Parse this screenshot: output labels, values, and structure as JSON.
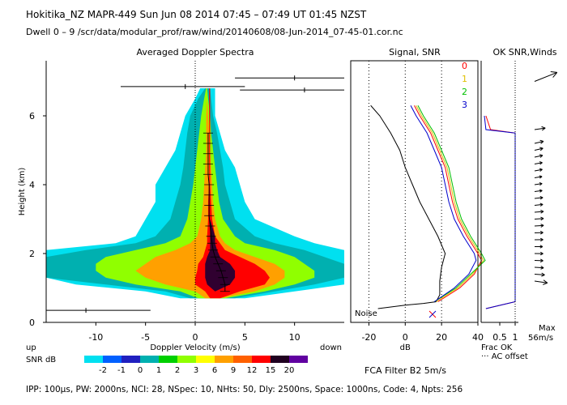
{
  "header": {
    "title": "Hokitika_NZ   MAPR-449   Sun Jun 08 2014 07:45 – 07:49 UT 01:45 NZST",
    "dwell": "Dwell   0 – 9    /scr/data/modular_prof/raw/wind/20140608/08-Jun-2014_07-45-01.cor.nc"
  },
  "footer": {
    "params": "IPP: 100µs,  PW: 2000ns,  NCI: 28,  NSpec: 10,  NHts: 50,  Dly: 2500ns,  Space: 1000ns,  Code: 4,  Npts: 256",
    "filter": "FCA Filter B2   5m/s"
  },
  "chart_data": [
    {
      "type": "heatmap",
      "title": "Averaged Doppler Spectra",
      "xlabel": "Doppler Velocity (m/s)",
      "ylabel": "Height (km)",
      "xlim": [
        -15,
        15
      ],
      "ylim": [
        0,
        7.6
      ],
      "x_ticks": [
        -10,
        -5,
        0,
        5,
        10
      ],
      "y_ticks": [
        0,
        2,
        4,
        6
      ],
      "up_label": "up",
      "down_label": "down",
      "colorbar": {
        "label": "SNR dB",
        "ticks": [
          "-2",
          "-1",
          "0",
          "1",
          "2",
          "3",
          "6",
          "9",
          "12",
          "15",
          "20"
        ],
        "colors": [
          "#00e0f0",
          "#0060ff",
          "#2020c0",
          "#00b0b0",
          "#00d000",
          "#90ff00",
          "#ffff00",
          "#ffa000",
          "#ff6000",
          "#ff0000",
          "#200020",
          "#6000a0"
        ]
      },
      "envelope": {
        "heights": [
          0.7,
          0.9,
          1.1,
          1.3,
          1.5,
          1.7,
          1.9,
          2.1,
          2.3,
          2.5,
          3.0,
          3.5,
          4.0,
          4.5,
          5.0,
          5.5,
          6.0,
          6.5,
          6.8
        ],
        "levels": [
          {
            "snr": "-2",
            "left": [
              -1.5,
              -5,
              -12,
              -15,
              -15,
              -15,
              -15,
              -15,
              -8,
              -6,
              -5,
              -4,
              -4,
              -3,
              -2,
              -1.5,
              -1,
              0,
              0.5
            ],
            "right": [
              5,
              10,
              15,
              15,
              15,
              15,
              15,
              15,
              12,
              10,
              6,
              5,
              4.5,
              4,
              3,
              2.5,
              2,
              2,
              2
            ]
          },
          {
            "snr": "0",
            "left": [
              -0.5,
              -3,
              -9,
              -15,
              -15,
              -15,
              -15,
              -11,
              -6,
              -4,
              -2.5,
              -2,
              -1.5,
              -1.2,
              -1,
              -0.8,
              -0.5,
              0.3,
              1
            ],
            "right": [
              4,
              8,
              12,
              15,
              15,
              15,
              13,
              11,
              8,
              6,
              4,
              3.5,
              3,
              2.8,
              2.5,
              2.2,
              1.8,
              1.6,
              1.5
            ]
          },
          {
            "snr": "2",
            "left": [
              0.3,
              -1.5,
              -6,
              -9,
              -10,
              -10,
              -9,
              -6,
              -3,
              -1.5,
              -0.8,
              -0.5,
              -0.2,
              0,
              0.2,
              0.4,
              0.6,
              0.9,
              1.1
            ],
            "right": [
              3,
              7,
              10,
              12,
              12,
              11,
              10,
              8,
              5,
              4,
              2.8,
              2.4,
              2.2,
              2,
              1.8,
              1.6,
              1.5,
              1.3,
              1.2
            ]
          },
          {
            "snr": "6",
            "left": [
              1,
              0,
              -3,
              -5,
              -6,
              -5,
              -4,
              -2,
              -0.5,
              0.2,
              0.6,
              0.8,
              0.9,
              1,
              1.1,
              1.1,
              1.1,
              1.2,
              1.2
            ],
            "right": [
              2.5,
              6,
              8,
              9,
              9,
              8,
              6,
              4,
              3,
              2.5,
              2,
              1.8,
              1.7,
              1.6,
              1.5,
              1.4,
              1.3,
              1.2,
              1.2
            ]
          },
          {
            "snr": "12",
            "left": [
              1.5,
              1,
              0,
              0,
              0.2,
              0.3,
              0.8,
              1,
              1.2,
              1.2,
              1.3,
              1.3,
              1.4,
              1.4,
              1.4,
              1.4,
              1.4,
              1.4,
              1.4
            ],
            "right": [
              2.5,
              4.5,
              7,
              7.5,
              7,
              6,
              4.5,
              3,
              2.5,
              2,
              1.7,
              1.6,
              1.5,
              1.5,
              1.5,
              1.5,
              1.5,
              1.5,
              1.5
            ]
          },
          {
            "snr": "15",
            "left": [
              2,
              2,
              1.2,
              1,
              1,
              1,
              1.2,
              1.5,
              1.5,
              1.5,
              1.5,
              1.5,
              1.5,
              1.5,
              1.5,
              1.5,
              1.5,
              1.5,
              1.5
            ],
            "right": [
              2,
              2,
              3.5,
              4,
              4,
              3.5,
              2.5,
              2.2,
              2,
              2,
              1.5,
              1.5,
              1.5,
              1.5,
              1.5,
              1.5,
              1.5,
              1.5,
              1.5
            ]
          }
        ]
      },
      "mean_velocity": {
        "heights": [
          0.9,
          1.1,
          1.3,
          1.5,
          1.7,
          1.9,
          2.1,
          2.3,
          2.5,
          2.8,
          3.1,
          3.4,
          3.7,
          4.0,
          4.3,
          4.6,
          4.9,
          5.2,
          5.5
        ],
        "values": [
          3,
          3,
          2.8,
          2.6,
          2.3,
          2,
          1.8,
          1.7,
          1.6,
          1.5,
          1.4,
          1.4,
          1.4,
          1.4,
          1.3,
          1.3,
          1.3,
          1.3,
          1.3
        ]
      },
      "spurious_spectra": [
        {
          "height": 0.35,
          "x0": -15,
          "x1": -4.5,
          "dot": -11
        },
        {
          "height": 6.85,
          "x0": -7.5,
          "x1": 5,
          "dot": -1
        },
        {
          "height": 7.1,
          "x0": 4,
          "x1": 15,
          "dot": 10
        },
        {
          "height": 6.75,
          "x0": 4.5,
          "x1": 15,
          "dot": 11
        }
      ]
    },
    {
      "type": "line",
      "title": "Signal, SNR",
      "xlabel": "dB",
      "xlim": [
        -30,
        40
      ],
      "x_ticks": [
        -20,
        0,
        20,
        40
      ],
      "noise_label": "Noise",
      "beam_labels": [
        "0",
        "1",
        "2",
        "3"
      ],
      "beam_colors": [
        "#ff0000",
        "#e0c000",
        "#00c000",
        "#0000cc"
      ],
      "noise_series": {
        "heights": [
          0.4,
          0.5,
          0.55,
          0.6,
          0.7,
          0.8,
          1.0,
          1.2,
          1.6,
          2.0,
          2.5,
          3.0,
          3.5,
          4.0,
          4.5,
          5.0,
          5.5,
          6.0,
          6.3
        ],
        "values": [
          -15,
          0,
          10,
          17,
          18,
          19,
          19,
          19,
          20,
          22,
          18,
          13,
          8,
          4,
          0,
          -3,
          -8,
          -14,
          -19
        ]
      },
      "snr_series": [
        {
          "name": "0",
          "heights": [
            0.6,
            1.0,
            1.4,
            1.8,
            2.0,
            2.5,
            3.0,
            3.5,
            4.0,
            4.5,
            5.0,
            5.5,
            6.0,
            6.3
          ],
          "values": [
            18,
            30,
            38,
            42,
            40,
            34,
            29,
            26,
            24,
            22,
            18,
            14,
            8,
            5
          ]
        },
        {
          "name": "1",
          "heights": [
            0.6,
            1.0,
            1.4,
            1.8,
            2.0,
            2.5,
            3.0,
            3.5,
            4.0,
            4.5,
            5.0,
            5.5,
            6.0,
            6.3
          ],
          "values": [
            17,
            29,
            37,
            43,
            41,
            35,
            30,
            27,
            25,
            23,
            19,
            15,
            9,
            6
          ]
        },
        {
          "name": "2",
          "heights": [
            0.6,
            1.0,
            1.4,
            1.8,
            2.0,
            2.5,
            3.0,
            3.5,
            4.0,
            4.5,
            5.0,
            5.5,
            6.0,
            6.3
          ],
          "values": [
            16,
            28,
            36,
            44,
            42,
            36,
            31,
            28,
            26,
            24,
            20,
            16,
            10,
            7
          ]
        },
        {
          "name": "3",
          "heights": [
            0.6,
            1.0,
            1.4,
            1.8,
            2.0,
            2.5,
            3.0,
            3.5,
            4.0,
            4.5,
            5.0,
            5.5,
            6.0,
            6.3
          ],
          "values": [
            16,
            27,
            35,
            39,
            38,
            32,
            27,
            24,
            22,
            20,
            16,
            12,
            6,
            3
          ]
        }
      ]
    },
    {
      "type": "line",
      "title": "OK SNR,Winds",
      "xlabel": "Frac OK",
      "x_ticks": [
        "0.5",
        "1"
      ],
      "max_label": "Max",
      "max_speed": "56m/s",
      "legend_note": "··· AC offset",
      "frac_ok": {
        "heights": [
          0.4,
          0.6,
          5.5,
          5.6,
          6.0
        ],
        "series": [
          {
            "name": "0",
            "values": [
              0.05,
              1.0,
              1.0,
              0.2,
              0.05
            ]
          },
          {
            "name": "3",
            "values": [
              0.05,
              1.0,
              1.0,
              0.05,
              0.0
            ]
          }
        ]
      },
      "wind_barbs": [
        {
          "height": 7.0,
          "speed": 56,
          "dir": 225
        },
        {
          "height": 5.6,
          "speed": 20,
          "dir": 250
        },
        {
          "height": 5.2,
          "speed": 18,
          "dir": 240
        },
        {
          "height": 5.0,
          "speed": 17,
          "dir": 240
        },
        {
          "height": 4.8,
          "speed": 16,
          "dir": 242
        },
        {
          "height": 4.6,
          "speed": 15,
          "dir": 245
        },
        {
          "height": 4.4,
          "speed": 15,
          "dir": 245
        },
        {
          "height": 4.2,
          "speed": 14,
          "dir": 248
        },
        {
          "height": 4.0,
          "speed": 14,
          "dir": 250
        },
        {
          "height": 3.8,
          "speed": 14,
          "dir": 252
        },
        {
          "height": 3.6,
          "speed": 15,
          "dir": 255
        },
        {
          "height": 3.4,
          "speed": 15,
          "dir": 255
        },
        {
          "height": 3.2,
          "speed": 16,
          "dir": 258
        },
        {
          "height": 3.0,
          "speed": 16,
          "dir": 260
        },
        {
          "height": 2.8,
          "speed": 16,
          "dir": 262
        },
        {
          "height": 2.6,
          "speed": 15,
          "dir": 265
        },
        {
          "height": 2.4,
          "speed": 15,
          "dir": 268
        },
        {
          "height": 2.2,
          "speed": 14,
          "dir": 270
        },
        {
          "height": 2.0,
          "speed": 15,
          "dir": 272
        },
        {
          "height": 1.8,
          "speed": 15,
          "dir": 275
        },
        {
          "height": 1.6,
          "speed": 16,
          "dir": 278
        },
        {
          "height": 1.4,
          "speed": 18,
          "dir": 280
        },
        {
          "height": 1.2,
          "speed": 24,
          "dir": 290
        }
      ]
    }
  ]
}
